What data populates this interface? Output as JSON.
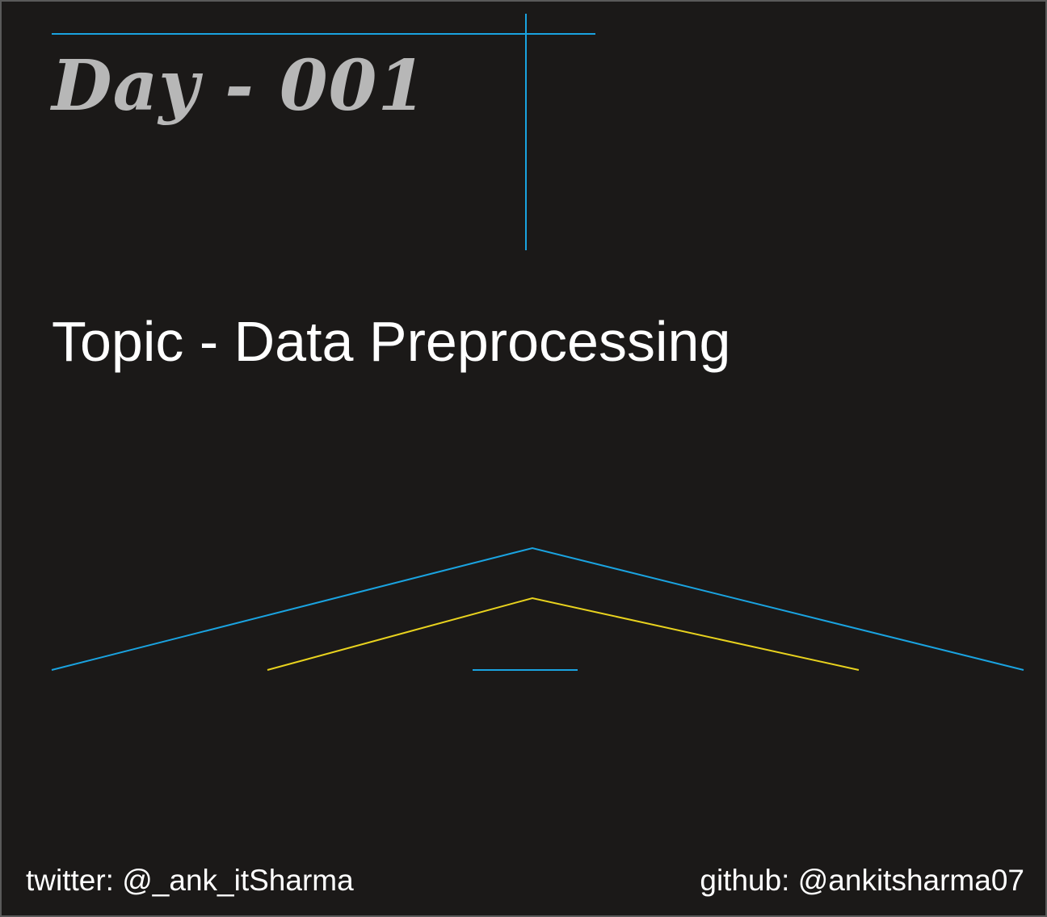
{
  "title": "Day - 001",
  "topic": "Topic - Data Preprocessing",
  "footer": {
    "twitter": "twitter: @_ank_itSharma",
    "github": "github: @ankitsharma07"
  },
  "colors": {
    "background": "#1b1918",
    "accent_blue": "#1aa3e0",
    "accent_yellow": "#e8d21e",
    "title_gray": "#b7b7b7",
    "text_white": "#ffffff"
  }
}
